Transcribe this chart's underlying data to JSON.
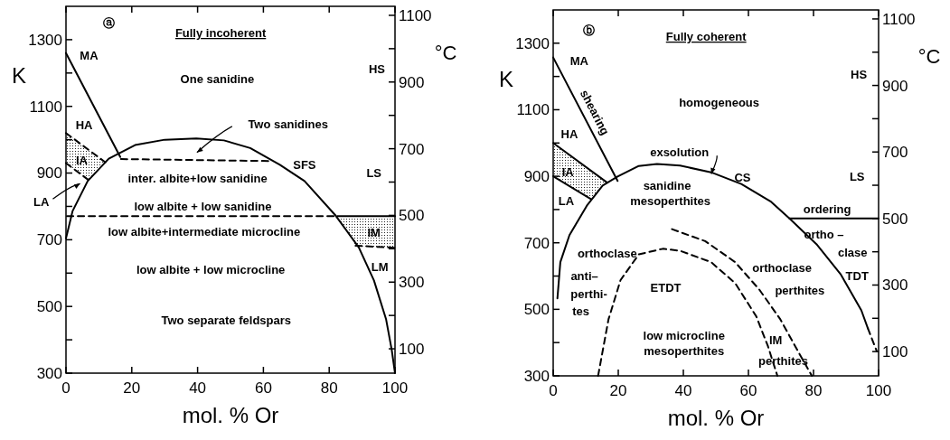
{
  "chart_data": [
    {
      "type": "line",
      "title": "Fully incoherent",
      "xlabel": "mol. % Or",
      "ylabel": "K",
      "y2label": "°C",
      "xlim": [
        0,
        100
      ],
      "xticks": [
        0,
        20,
        40,
        60,
        80,
        100
      ],
      "ylim": [
        300,
        1400
      ],
      "yticks": [
        300,
        {
          "value": 400,
          "label": null
        },
        500,
        {
          "value": 600,
          "label": null
        },
        700,
        {
          "value": 800,
          "label": null
        },
        900,
        {
          "value": 1000,
          "label": null
        },
        1100,
        {
          "value": 1200,
          "label": null
        },
        1300
      ],
      "y2lim": [
        27,
        1127
      ],
      "y2ticks": [
        100,
        {
          "value": 200,
          "label": null
        },
        300,
        {
          "value": 400,
          "label": null
        },
        500,
        {
          "value": 600,
          "label": null
        },
        700,
        {
          "value": 800,
          "label": null
        },
        900,
        {
          "value": 1000,
          "label": null
        },
        1100
      ],
      "series": [
        {
          "type": "line",
          "color": "#000000",
          "line_style": "solid",
          "x": [
            0,
            2,
            6.6,
            13,
            21,
            30,
            39.6,
            48,
            56,
            65,
            72.5,
            82,
            89,
            93.6,
            97.3,
            99,
            100
          ],
          "values": [
            704,
            786,
            876,
            943,
            984,
            1000,
            1004,
            998,
            975,
            925,
            876,
            772,
            677,
            578,
            461,
            370,
            300
          ]
        },
        {
          "type": "line",
          "color": "#000000",
          "line_style": "solid",
          "x": [
            0,
            16.5
          ],
          "values": [
            1260,
            948
          ]
        },
        {
          "type": "line",
          "color": "#000000",
          "line_style": "dashed",
          "x": [
            16.7,
            62.5
          ],
          "values": [
            942,
            936
          ]
        },
        {
          "type": "line",
          "color": "#000000",
          "line_style": "dashed",
          "x": [
            0.3,
            82.5
          ],
          "values": [
            771,
            771
          ]
        },
        {
          "type": "line",
          "color": "#000000",
          "line_style": "solid",
          "x": [
            82.5,
            100
          ],
          "values": [
            771,
            771
          ]
        },
        {
          "type": "line",
          "color": "#000000",
          "line_style": "dashed",
          "x": [
            88,
            100
          ],
          "values": [
            682,
            676
          ]
        },
        {
          "type": "line",
          "color": "#000000",
          "line_style": "dashed",
          "x": [
            0,
            12
          ],
          "values": [
            1020,
            932
          ]
        },
        {
          "type": "line",
          "color": "#000000",
          "line_style": "dashed",
          "x": [
            0,
            7
          ],
          "values": [
            930,
            878
          ]
        }
      ],
      "annotations": [
        "ⓐ",
        "MA",
        "HA",
        "HS",
        "LS",
        "One sanidine",
        "Two sanidines",
        "IA",
        "SFS",
        "inter. albite+low sanidine",
        "LA",
        "low albite + low sanidine",
        "low albite+intermediate microcline",
        "IM",
        "LM",
        "low albite + low microcline",
        "Two separate feldspars"
      ]
    },
    {
      "type": "line",
      "title": "Fully coherent",
      "xlabel": "mol. % Or",
      "ylabel": "K",
      "y2label": "°C",
      "xlim": [
        0,
        100
      ],
      "xticks": [
        0,
        20,
        40,
        60,
        80,
        100
      ],
      "ylim": [
        300,
        1400
      ],
      "yticks": [
        300,
        {
          "value": 400,
          "label": null
        },
        500,
        {
          "value": 600,
          "label": null
        },
        700,
        {
          "value": 800,
          "label": null
        },
        900,
        {
          "value": 1000,
          "label": null
        },
        1100,
        {
          "value": 1200,
          "label": null
        },
        1300
      ],
      "y2lim": [
        27,
        1127
      ],
      "y2ticks": [
        100,
        {
          "value": 200,
          "label": null
        },
        300,
        {
          "value": 400,
          "label": null
        },
        500,
        {
          "value": 600,
          "label": null
        },
        700,
        {
          "value": 800,
          "label": null
        },
        900,
        {
          "value": 1000,
          "label": null
        },
        1100
      ],
      "series": [
        {
          "type": "line",
          "color": "#000000",
          "line_style": "solid",
          "x": [
            1.3,
            2.2,
            5,
            10.5,
            15.2,
            19.8,
            26.3,
            31.9,
            39,
            48.5,
            57.8,
            67,
            72.6,
            80.9,
            88.3,
            94.7,
            96.7
          ],
          "values": [
            533,
            642,
            723,
            814,
            872,
            899,
            931,
            937,
            932,
            912,
            877,
            823,
            773,
            696,
            606,
            497,
            443
          ]
        },
        {
          "type": "line",
          "color": "#000000",
          "line_style": "dashed",
          "x": [
            96.7,
            99.4
          ],
          "values": [
            443,
            375
          ]
        },
        {
          "type": "line",
          "color": "#000000",
          "line_style": "solid",
          "x": [
            0,
            19.8
          ],
          "values": [
            1257,
            886
          ]
        },
        {
          "type": "line",
          "color": "#000000",
          "line_style": "solid",
          "x": [
            72.6,
            100
          ],
          "values": [
            773,
            773
          ]
        },
        {
          "type": "line",
          "color": "#000000",
          "line_style": "solid",
          "x": [
            0,
            16.6
          ],
          "values": [
            1000,
            881
          ]
        },
        {
          "type": "line",
          "color": "#000000",
          "line_style": "solid",
          "x": [
            0,
            11.5
          ],
          "values": [
            900,
            832
          ]
        },
        {
          "type": "line",
          "color": "#000000",
          "line_style": "dashed",
          "x": [
            13.8,
            17,
            20.7,
            26.3,
            33.7,
            39,
            48.5,
            55.9,
            62.4,
            66,
            68.9
          ],
          "values": [
            300,
            470,
            588,
            665,
            682,
            676,
            642,
            579,
            479,
            389,
            300
          ]
        },
        {
          "type": "line",
          "color": "#000000",
          "line_style": "dashed",
          "x": [
            36.5,
            46.7,
            55.9,
            63.3,
            69.8,
            75.4,
            79.5
          ],
          "values": [
            741,
            705,
            642,
            560,
            470,
            371,
            300
          ]
        }
      ],
      "annotations": [
        "ⓑ",
        "MA",
        "shearing",
        "HS",
        "homogeneous",
        "HA",
        "exsolution",
        "IA",
        "CS",
        "LS",
        "sanidine",
        "mesoperthites",
        "LA",
        "ordering",
        "ortho –",
        "clase",
        "TDT",
        "orthoclase",
        "anti–",
        "perthi-",
        "tes",
        "ETDT",
        "orthoclase",
        "perthites",
        "low microcline",
        "mesoperthites",
        "IM",
        "perthites"
      ]
    }
  ]
}
